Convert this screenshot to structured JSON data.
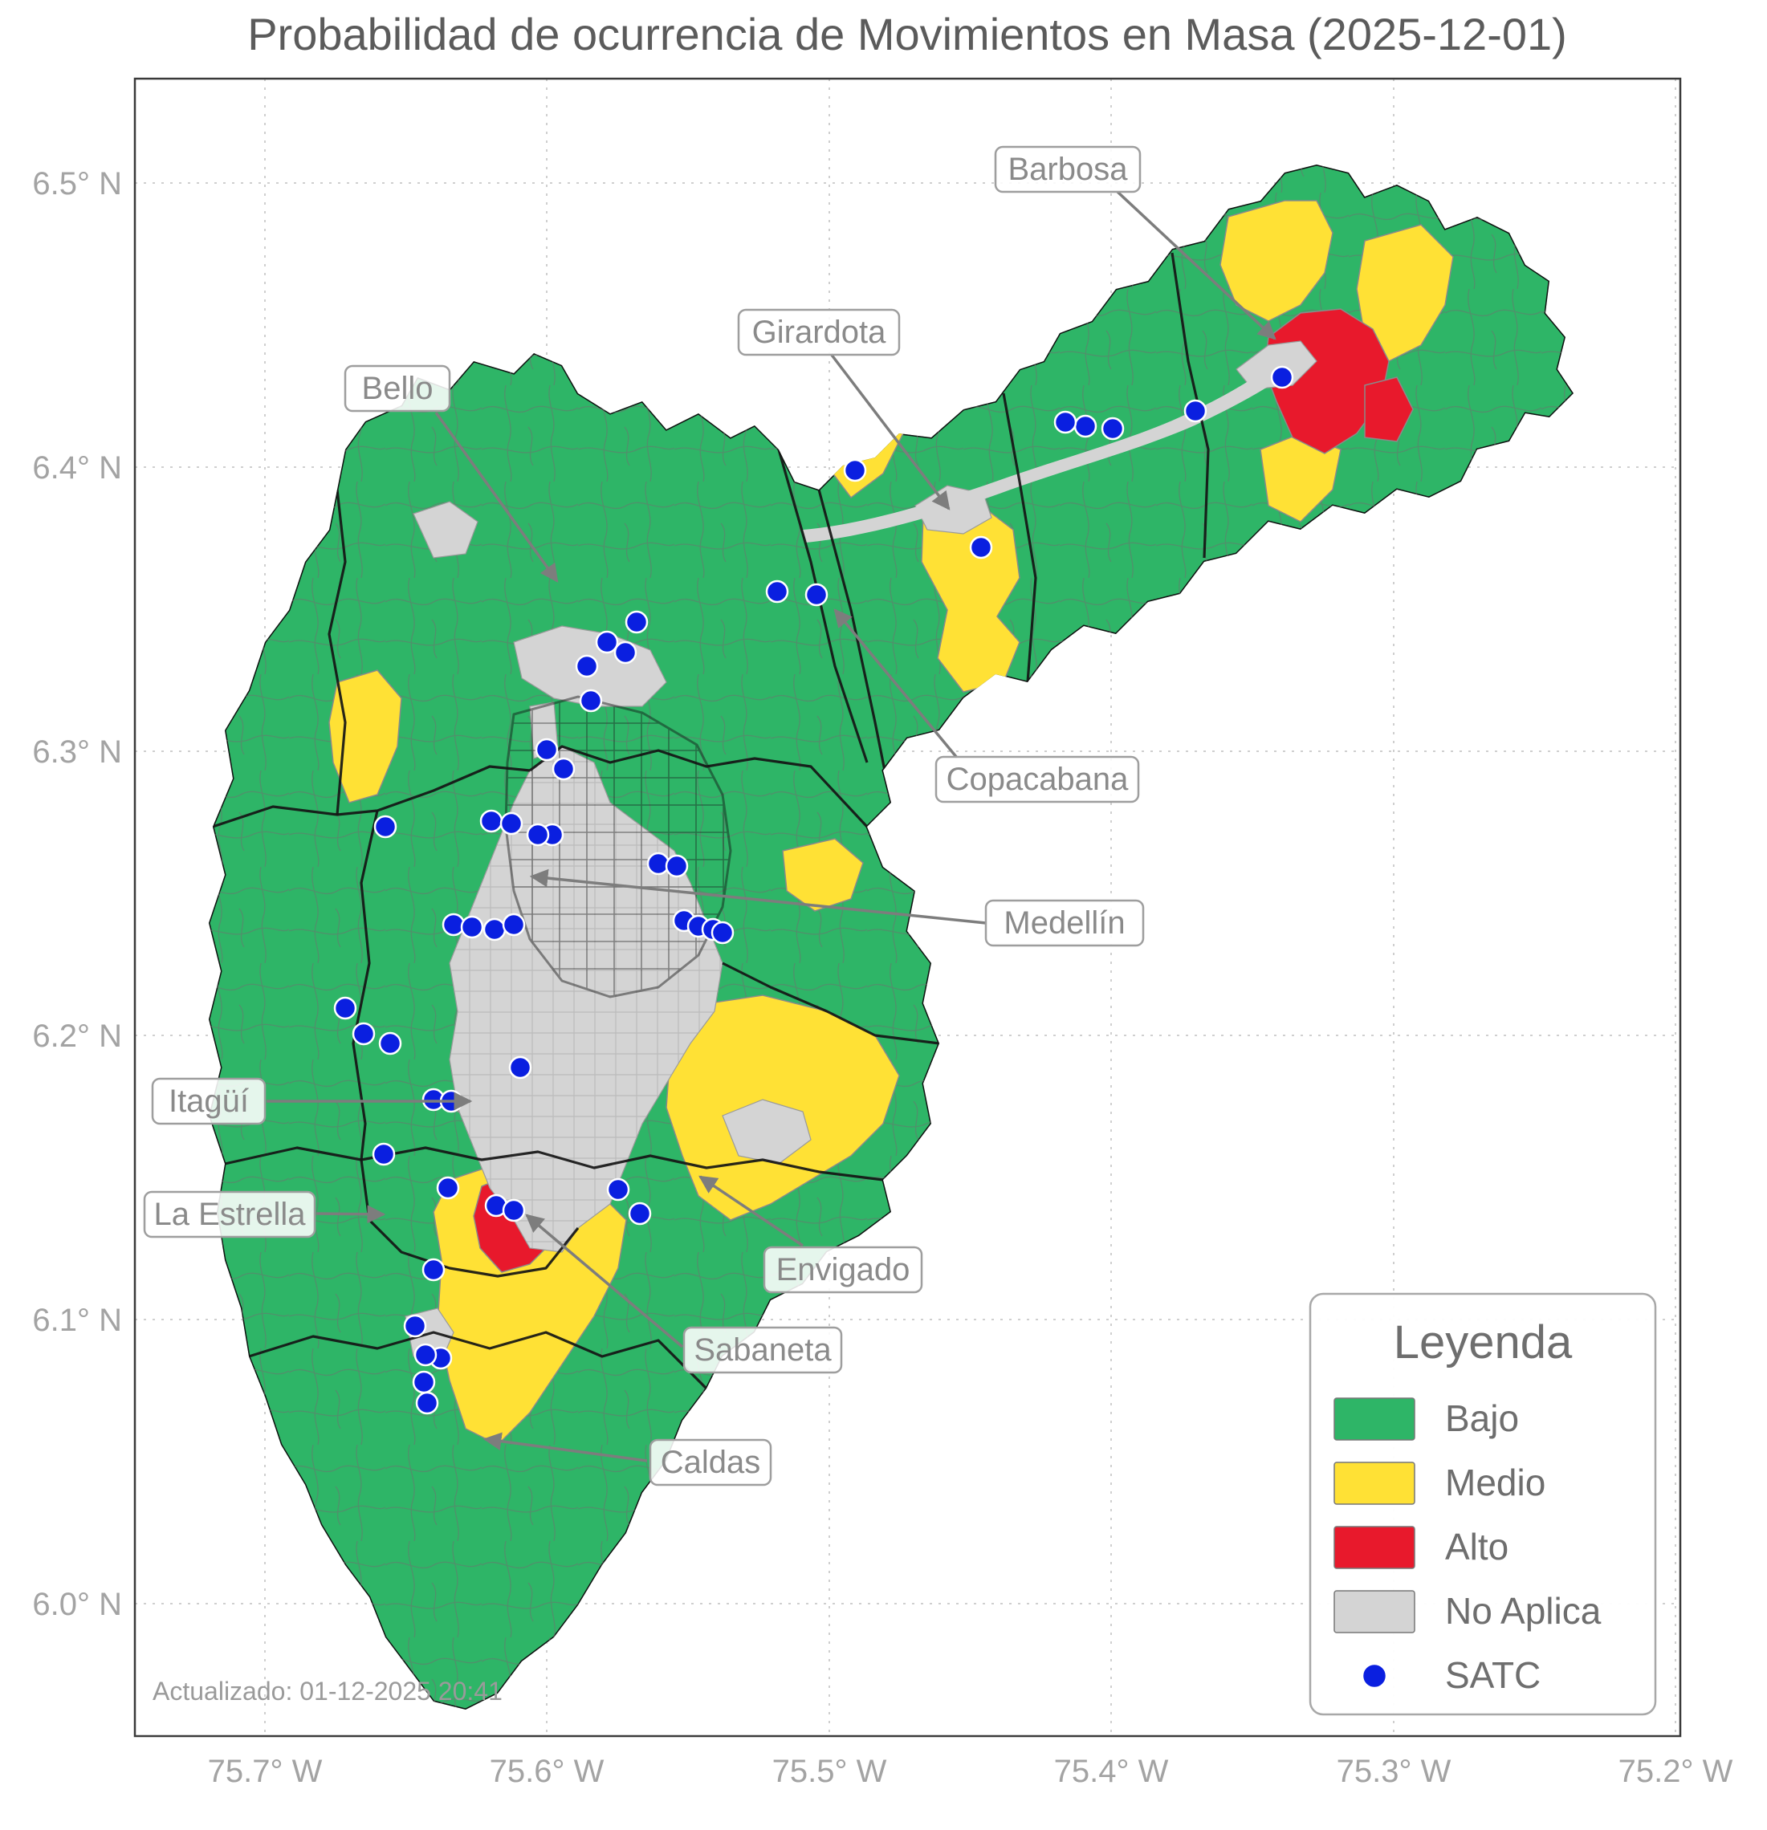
{
  "title": "Probabilidad de ocurrencia de Movimientos en Masa (2025-12-01)",
  "footer": {
    "updated": "Actualizado: 01-12-2025 20:41"
  },
  "axes": {
    "x_ticks": [
      "75.7° W",
      "75.6° W",
      "75.5° W",
      "75.4° W",
      "75.3° W",
      "75.2° W"
    ],
    "y_ticks": [
      "6.5° N",
      "6.4° N",
      "6.3° N",
      "6.2° N",
      "6.1° N",
      "6.0° N"
    ]
  },
  "legend": {
    "title": "Leyenda",
    "items": [
      {
        "label": "Bajo",
        "color": "#2eb567",
        "type": "swatch"
      },
      {
        "label": "Medio",
        "color": "#ffe135",
        "type": "swatch"
      },
      {
        "label": "Alto",
        "color": "#e8192c",
        "type": "swatch"
      },
      {
        "label": "No Aplica",
        "color": "#d4d4d4",
        "type": "swatch"
      },
      {
        "label": "SATC",
        "color": "#0a1fe0",
        "type": "point"
      }
    ]
  },
  "annotations": [
    {
      "label": "Barbosa"
    },
    {
      "label": "Girardota"
    },
    {
      "label": "Bello"
    },
    {
      "label": "Copacabana"
    },
    {
      "label": "Medellín"
    },
    {
      "label": "Itagüí"
    },
    {
      "label": "La Estrella"
    },
    {
      "label": "Envigado"
    },
    {
      "label": "Sabaneta"
    },
    {
      "label": "Caldas"
    }
  ],
  "map": {
    "risk_levels": {
      "bajo": "#2eb567",
      "medio": "#ffe135",
      "alto": "#e8192c",
      "no_aplica": "#d4d4d4"
    },
    "satc_color": "#0a1fe0",
    "satc_points": [
      [
        1597,
        470
      ],
      [
        1489,
        512
      ],
      [
        1386,
        534
      ],
      [
        1352,
        531
      ],
      [
        1327,
        526
      ],
      [
        1222,
        682
      ],
      [
        1065,
        586
      ],
      [
        1017,
        741
      ],
      [
        968,
        737
      ],
      [
        793,
        775
      ],
      [
        756,
        800
      ],
      [
        779,
        813
      ],
      [
        731,
        830
      ],
      [
        736,
        873
      ],
      [
        681,
        934
      ],
      [
        702,
        958
      ],
      [
        688,
        1040
      ],
      [
        480,
        1030
      ],
      [
        612,
        1023
      ],
      [
        637,
        1026
      ],
      [
        670,
        1040
      ],
      [
        820,
        1076
      ],
      [
        843,
        1079
      ],
      [
        565,
        1152
      ],
      [
        588,
        1155
      ],
      [
        616,
        1158
      ],
      [
        640,
        1152
      ],
      [
        852,
        1147
      ],
      [
        870,
        1154
      ],
      [
        888,
        1158
      ],
      [
        900,
        1162
      ],
      [
        430,
        1256
      ],
      [
        453,
        1288
      ],
      [
        486,
        1300
      ],
      [
        648,
        1330
      ],
      [
        540,
        1370
      ],
      [
        562,
        1372
      ],
      [
        478,
        1438
      ],
      [
        558,
        1480
      ],
      [
        618,
        1502
      ],
      [
        640,
        1508
      ],
      [
        770,
        1482
      ],
      [
        797,
        1512
      ],
      [
        540,
        1582
      ],
      [
        517,
        1652
      ],
      [
        549,
        1692
      ],
      [
        530,
        1688
      ],
      [
        528,
        1722
      ],
      [
        532,
        1748
      ]
    ]
  }
}
